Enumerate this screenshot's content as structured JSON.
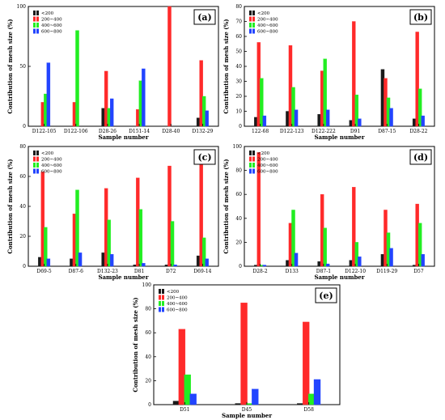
{
  "colors": {
    "series": [
      "#1a1a1a",
      "#ff2a2a",
      "#22ee22",
      "#2244ff"
    ],
    "axis": "#000000",
    "background": "#ffffff"
  },
  "chart_data": [
    {
      "type": "bar",
      "panel_label": "(a)",
      "categories": [
        "D122-105",
        "D122-106",
        "D28-26",
        "D151-14",
        "D28-40",
        "D132-29"
      ],
      "series": [
        {
          "name": "<200",
          "values": [
            0,
            0,
            15,
            0,
            0,
            7
          ]
        },
        {
          "name": "200~400",
          "values": [
            20,
            20,
            46,
            14,
            100,
            55
          ]
        },
        {
          "name": "400~600",
          "values": [
            27,
            80,
            15,
            38,
            0,
            25
          ]
        },
        {
          "name": "600~800",
          "values": [
            53,
            0,
            23,
            48,
            0,
            13
          ]
        }
      ],
      "xlabel": "Sample number",
      "ylabel": "Contribution of mesh size (%)",
      "ylim": [
        0,
        100
      ],
      "yticks": [
        0,
        50,
        100
      ],
      "legend_position": "top-left",
      "grid": false
    },
    {
      "type": "bar",
      "panel_label": "(b)",
      "categories": [
        "122-68",
        "D122-123",
        "D122-222",
        "D91",
        "D87-15",
        "D28-22"
      ],
      "series": [
        {
          "name": "<200",
          "values": [
            6,
            10,
            8,
            4,
            38,
            5
          ]
        },
        {
          "name": "200~400",
          "values": [
            56,
            54,
            37,
            70,
            32,
            63
          ]
        },
        {
          "name": "400~600",
          "values": [
            32,
            26,
            45,
            21,
            19,
            25
          ]
        },
        {
          "name": "600~800",
          "values": [
            7,
            11,
            11,
            5,
            12,
            7
          ]
        }
      ],
      "xlabel": "Sample number",
      "ylabel": "Contribution of mesh size (%)",
      "ylim": [
        0,
        80
      ],
      "yticks": [
        0,
        10,
        20,
        30,
        40,
        50,
        60,
        70,
        80
      ],
      "legend_position": "top-left",
      "grid": false
    },
    {
      "type": "bar",
      "panel_label": "(c)",
      "categories": [
        "D69-5",
        "D87-6",
        "D132-23",
        "D81",
        "D72",
        "D69-14"
      ],
      "series": [
        {
          "name": "<200",
          "values": [
            6,
            5,
            9,
            1,
            1,
            7
          ]
        },
        {
          "name": "200~400",
          "values": [
            63,
            35,
            52,
            59,
            67,
            70
          ]
        },
        {
          "name": "400~600",
          "values": [
            26,
            51,
            31,
            38,
            30,
            19
          ]
        },
        {
          "name": "600~800",
          "values": [
            5,
            9,
            8,
            2,
            1,
            5
          ]
        }
      ],
      "xlabel": "Sample number",
      "ylabel": "Contribution of mesh size (%)",
      "ylim": [
        0,
        80
      ],
      "yticks": [
        0,
        20,
        40,
        60,
        80
      ],
      "legend_position": "top-left",
      "grid": false
    },
    {
      "type": "bar",
      "panel_label": "(d)",
      "categories": [
        "D28-2",
        "D133",
        "D87-1",
        "D122-10",
        "D119-29",
        "D57"
      ],
      "series": [
        {
          "name": "<200",
          "values": [
            1,
            5,
            4,
            5,
            10,
            1
          ]
        },
        {
          "name": "200~400",
          "values": [
            95,
            36,
            60,
            66,
            47,
            52
          ]
        },
        {
          "name": "400~600",
          "values": [
            1,
            47,
            32,
            20,
            28,
            36
          ]
        },
        {
          "name": "600~800",
          "values": [
            1,
            11,
            2,
            8,
            15,
            10
          ]
        }
      ],
      "xlabel": "Sample number",
      "ylabel": "Contribution of mesh size (%)",
      "ylim": [
        0,
        100
      ],
      "yticks": [
        0,
        20,
        40,
        60,
        80,
        100
      ],
      "legend_position": "top-left",
      "grid": false
    },
    {
      "type": "bar",
      "panel_label": "(e)",
      "categories": [
        "D51",
        "D45",
        "D58"
      ],
      "series": [
        {
          "name": "<200",
          "values": [
            3,
            1,
            1
          ]
        },
        {
          "name": "200~400",
          "values": [
            63,
            85,
            69
          ]
        },
        {
          "name": "400~600",
          "values": [
            25,
            1,
            9
          ]
        },
        {
          "name": "600~800",
          "values": [
            9,
            13,
            21
          ]
        }
      ],
      "xlabel": "Sample number",
      "ylabel": "Contribution of mesh size (%)",
      "ylim": [
        0,
        100
      ],
      "yticks": [
        0,
        20,
        40,
        60,
        80,
        100
      ],
      "legend_position": "top-left",
      "grid": false
    }
  ]
}
